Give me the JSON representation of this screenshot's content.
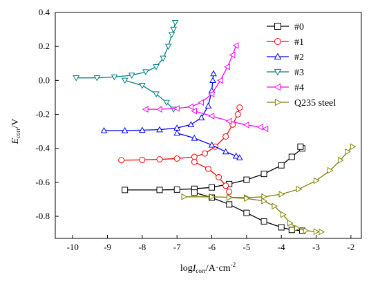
{
  "chart_data": {
    "type": "line",
    "title": "",
    "xlabel": {
      "prefix": "log",
      "italic": "I",
      "sub": "corr",
      "unit": "/A·cm",
      "sup": "-2"
    },
    "ylabel": {
      "italic": "E",
      "sub": "corr",
      "unit": "/V"
    },
    "xlim": [
      -10.5,
      -1.7
    ],
    "ylim": [
      -0.93,
      0.4
    ],
    "xticks": [
      -10,
      -9,
      -8,
      -7,
      -6,
      -5,
      -4,
      -3,
      -2
    ],
    "yticks": [
      -0.8,
      -0.6,
      -0.4,
      -0.2,
      0.0,
      0.2,
      0.4
    ],
    "xtick_labels": [
      "-10",
      "-9",
      "-8",
      "-7",
      "-6",
      "-5",
      "-4",
      "-3",
      "-2"
    ],
    "ytick_labels": [
      "-0.8",
      "-0.6",
      "-0.4",
      "-0.2",
      "0.0",
      "0.2",
      "0.4"
    ],
    "grid": false,
    "legend_position": "top-right",
    "series": [
      {
        "name": "#0",
        "color": "#000000",
        "marker": "square",
        "points": [
          [
            -8.5,
            -0.645
          ],
          [
            -7.5,
            -0.645
          ],
          [
            -7.0,
            -0.643
          ],
          [
            -6.5,
            -0.638
          ],
          [
            -6.0,
            -0.63
          ],
          [
            -5.5,
            -0.61
          ],
          [
            -5.0,
            -0.585
          ],
          [
            -4.5,
            -0.55
          ],
          [
            -4.0,
            -0.5
          ],
          [
            -3.7,
            -0.45
          ],
          [
            -3.4,
            -0.4
          ],
          [
            -3.45,
            -0.39
          ],
          [
            -6.5,
            -0.66
          ],
          [
            -6.0,
            -0.69
          ],
          [
            -5.5,
            -0.73
          ],
          [
            -5.0,
            -0.78
          ],
          [
            -4.5,
            -0.83
          ],
          [
            -4.0,
            -0.865
          ],
          [
            -3.7,
            -0.88
          ],
          [
            -3.4,
            -0.885
          ]
        ]
      },
      {
        "name": "#1",
        "color": "#ff0000",
        "marker": "circle",
        "points": [
          [
            -8.6,
            -0.47
          ],
          [
            -8.0,
            -0.468
          ],
          [
            -7.5,
            -0.465
          ],
          [
            -7.0,
            -0.46
          ],
          [
            -6.5,
            -0.45
          ],
          [
            -6.2,
            -0.43
          ],
          [
            -5.9,
            -0.39
          ],
          [
            -5.6,
            -0.33
          ],
          [
            -5.4,
            -0.26
          ],
          [
            -5.25,
            -0.2
          ],
          [
            -5.2,
            -0.16
          ],
          [
            -6.5,
            -0.48
          ],
          [
            -6.1,
            -0.52
          ],
          [
            -5.8,
            -0.57
          ],
          [
            -5.6,
            -0.62
          ],
          [
            -5.5,
            -0.655
          ]
        ]
      },
      {
        "name": "#2",
        "color": "#0000ff",
        "marker": "triangle-up",
        "points": [
          [
            -9.1,
            -0.295
          ],
          [
            -8.5,
            -0.295
          ],
          [
            -8.0,
            -0.293
          ],
          [
            -7.5,
            -0.29
          ],
          [
            -7.0,
            -0.28
          ],
          [
            -6.6,
            -0.26
          ],
          [
            -6.3,
            -0.22
          ],
          [
            -6.1,
            -0.15
          ],
          [
            -6.0,
            -0.06
          ],
          [
            -5.97,
            0.0
          ],
          [
            -5.95,
            0.04
          ],
          [
            -7.0,
            -0.31
          ],
          [
            -6.5,
            -0.34
          ],
          [
            -6.0,
            -0.38
          ],
          [
            -5.6,
            -0.42
          ],
          [
            -5.3,
            -0.445
          ],
          [
            -5.2,
            -0.455
          ]
        ]
      },
      {
        "name": "#3",
        "color": "#008080",
        "marker": "triangle-down",
        "points": [
          [
            -9.9,
            0.015
          ],
          [
            -9.3,
            0.015
          ],
          [
            -8.8,
            0.02
          ],
          [
            -8.3,
            0.03
          ],
          [
            -7.9,
            0.05
          ],
          [
            -7.6,
            0.08
          ],
          [
            -7.4,
            0.13
          ],
          [
            -7.25,
            0.2
          ],
          [
            -7.15,
            0.27
          ],
          [
            -7.1,
            0.3
          ],
          [
            -7.05,
            0.34
          ],
          [
            -8.5,
            0.0
          ],
          [
            -8.0,
            -0.03
          ],
          [
            -7.6,
            -0.08
          ],
          [
            -7.3,
            -0.13
          ],
          [
            -7.1,
            -0.17
          ]
        ]
      },
      {
        "name": "#4",
        "color": "#ff00ff",
        "marker": "triangle-left",
        "points": [
          [
            -7.9,
            -0.17
          ],
          [
            -7.5,
            -0.17
          ],
          [
            -7.0,
            -0.165
          ],
          [
            -6.6,
            -0.155
          ],
          [
            -6.3,
            -0.13
          ],
          [
            -6.0,
            -0.08
          ],
          [
            -5.75,
            0.0
          ],
          [
            -5.55,
            0.08
          ],
          [
            -5.4,
            0.15
          ],
          [
            -5.3,
            0.205
          ],
          [
            -6.5,
            -0.18
          ],
          [
            -6.0,
            -0.21
          ],
          [
            -5.5,
            -0.24
          ],
          [
            -5.0,
            -0.262
          ],
          [
            -4.6,
            -0.275
          ],
          [
            -4.45,
            -0.285
          ]
        ]
      },
      {
        "name": "Q235 steel",
        "color": "#808000",
        "marker": "triangle-right",
        "points": [
          [
            -6.8,
            -0.685
          ],
          [
            -6.0,
            -0.685
          ],
          [
            -5.5,
            -0.688
          ],
          [
            -5.0,
            -0.69
          ],
          [
            -4.5,
            -0.685
          ],
          [
            -4.0,
            -0.67
          ],
          [
            -3.5,
            -0.64
          ],
          [
            -3.0,
            -0.59
          ],
          [
            -2.6,
            -0.53
          ],
          [
            -2.3,
            -0.47
          ],
          [
            -2.1,
            -0.42
          ],
          [
            -1.95,
            -0.39
          ],
          [
            -5.5,
            -0.69
          ],
          [
            -5.0,
            -0.695
          ],
          [
            -4.5,
            -0.71
          ],
          [
            -4.2,
            -0.74
          ],
          [
            -3.95,
            -0.79
          ],
          [
            -3.75,
            -0.84
          ],
          [
            -3.55,
            -0.87
          ],
          [
            -3.3,
            -0.885
          ],
          [
            -3.0,
            -0.89
          ],
          [
            -2.85,
            -0.892
          ]
        ]
      }
    ]
  }
}
